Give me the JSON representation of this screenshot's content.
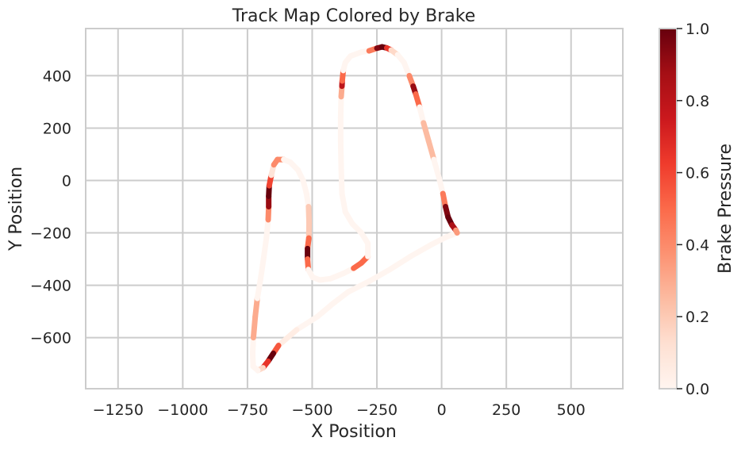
{
  "chart_data": {
    "type": "scatter",
    "title": "Track Map Colored by Brake",
    "xlabel": "X Position",
    "ylabel": "Y Position",
    "xlim": [
      -1375,
      700
    ],
    "ylim": [
      -795,
      580
    ],
    "x_ticks": [
      -1250,
      -1000,
      -750,
      -500,
      -250,
      0,
      250,
      500
    ],
    "x_tick_labels": [
      "−1250",
      "−1000",
      "−750",
      "−500",
      "−250",
      "0",
      "250",
      "500"
    ],
    "y_ticks": [
      -600,
      -400,
      -200,
      0,
      200,
      400
    ],
    "y_tick_labels": [
      "−600",
      "−400",
      "−200",
      "0",
      "200",
      "400"
    ],
    "grid": true,
    "colormap": "Reds",
    "colorbar": {
      "label": "Brake Pressure",
      "range": [
        0,
        1
      ],
      "ticks": [
        0.0,
        0.2,
        0.4,
        0.6,
        0.8,
        1.0
      ],
      "tick_labels": [
        "0.0",
        "0.2",
        "0.4",
        "0.6",
        "0.8",
        "1.0"
      ]
    },
    "track": [
      [
        60,
        -200,
        0
      ],
      [
        20,
        -215,
        0
      ],
      [
        -40,
        -245,
        0
      ],
      [
        -120,
        -290,
        0
      ],
      [
        -200,
        -340,
        0
      ],
      [
        -280,
        -385,
        0
      ],
      [
        -360,
        -425,
        0
      ],
      [
        -420,
        -470,
        0
      ],
      [
        -480,
        -520,
        0
      ],
      [
        -560,
        -570,
        0
      ],
      [
        -630,
        -630,
        0.1
      ],
      [
        -650,
        -660,
        1
      ],
      [
        -670,
        -690,
        1
      ],
      [
        -690,
        -715,
        0.3
      ],
      [
        -710,
        -725,
        0
      ],
      [
        -728,
        -710,
        0
      ],
      [
        -730,
        -660,
        0
      ],
      [
        -727,
        -600,
        0
      ],
      [
        -720,
        -520,
        0.6
      ],
      [
        -712,
        -450,
        0
      ],
      [
        -700,
        -380,
        0
      ],
      [
        -688,
        -300,
        0
      ],
      [
        -677,
        -220,
        0
      ],
      [
        -670,
        -150,
        0
      ],
      [
        -668,
        -100,
        0.8
      ],
      [
        -668,
        -60,
        1
      ],
      [
        -666,
        -20,
        1
      ],
      [
        -658,
        20,
        0.2
      ],
      [
        -648,
        60,
        0
      ],
      [
        -634,
        80,
        0.8
      ],
      [
        -610,
        80,
        0
      ],
      [
        -585,
        70,
        0
      ],
      [
        -555,
        40,
        0
      ],
      [
        -535,
        0,
        0
      ],
      [
        -522,
        -50,
        0
      ],
      [
        -514,
        -100,
        0
      ],
      [
        -512,
        -160,
        0.4
      ],
      [
        -513,
        -220,
        0
      ],
      [
        -518,
        -260,
        1
      ],
      [
        -518,
        -300,
        1
      ],
      [
        -515,
        -340,
        0
      ],
      [
        -498,
        -370,
        0
      ],
      [
        -470,
        -380,
        0
      ],
      [
        -430,
        -375,
        0
      ],
      [
        -380,
        -355,
        0
      ],
      [
        -340,
        -335,
        0
      ],
      [
        -310,
        -315,
        1
      ],
      [
        -285,
        -290,
        0
      ],
      [
        -285,
        -240,
        0
      ],
      [
        -310,
        -200,
        0
      ],
      [
        -345,
        -165,
        0
      ],
      [
        -372,
        -120,
        0
      ],
      [
        -385,
        -50,
        0
      ],
      [
        -388,
        50,
        0
      ],
      [
        -390,
        150,
        0
      ],
      [
        -390,
        240,
        0
      ],
      [
        -388,
        320,
        0
      ],
      [
        -385,
        360,
        0.6
      ],
      [
        -384,
        380,
        1
      ],
      [
        -380,
        420,
        0
      ],
      [
        -372,
        450,
        0
      ],
      [
        -352,
        475,
        0
      ],
      [
        -310,
        490,
        0
      ],
      [
        -280,
        495,
        0
      ],
      [
        -250,
        505,
        0.9
      ],
      [
        -230,
        510,
        1
      ],
      [
        -212,
        506,
        1
      ],
      [
        -195,
        498,
        0.3
      ],
      [
        -170,
        480,
        0
      ],
      [
        -145,
        450,
        0
      ],
      [
        -125,
        400,
        0
      ],
      [
        -110,
        360,
        0.8
      ],
      [
        -100,
        330,
        1
      ],
      [
        -85,
        280,
        0
      ],
      [
        -70,
        220,
        0
      ],
      [
        -50,
        150,
        0.5
      ],
      [
        -30,
        80,
        0
      ],
      [
        -10,
        10,
        0
      ],
      [
        5,
        -50,
        0
      ],
      [
        15,
        -100,
        0.9
      ],
      [
        25,
        -140,
        1
      ],
      [
        40,
        -170,
        1
      ],
      [
        55,
        -190,
        0.7
      ],
      [
        60,
        -200,
        0
      ]
    ]
  }
}
